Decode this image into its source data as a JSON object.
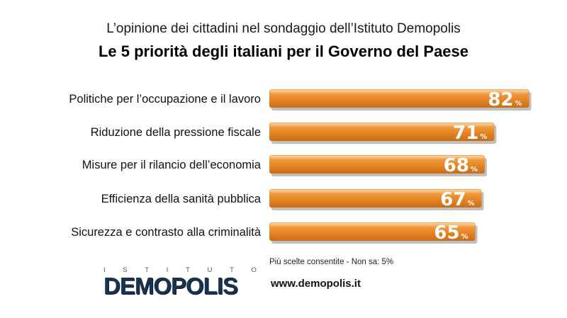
{
  "header": {
    "subtitle": "L’opinione dei cittadini nel sondaggio dell’Istituto Demopolis",
    "title": "Le 5 priorità degli italiani per il Governo del Paese"
  },
  "chart_data": {
    "type": "bar",
    "orientation": "horizontal",
    "categories": [
      "Politiche per l’occupazione e il lavoro",
      "Riduzione della pressione fiscale",
      "Misure per il rilancio dell’economia",
      "Efficienza della sanità pubblica",
      "Sicurezza e contrasto alla criminalità"
    ],
    "values": [
      82,
      71,
      68,
      67,
      65
    ],
    "value_suffix": "%",
    "bar_color": "#e8892a",
    "title": "Le 5 priorità degli italiani per il Governo del Paese",
    "xlabel": "",
    "ylabel": "",
    "xlim": [
      0,
      100
    ],
    "grid": false,
    "legend": "none"
  },
  "footer": {
    "note": "Più scelte consentite - Non sa: 5%",
    "website": "www.demopolis.it",
    "logo_top": [
      "I",
      "S",
      "T",
      "I",
      "T",
      "U",
      "T",
      "O"
    ],
    "logo_main": "DEMOPOLIS"
  }
}
